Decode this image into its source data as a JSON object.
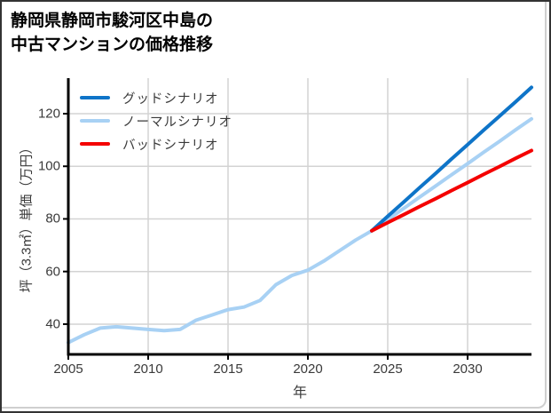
{
  "window": {
    "title_line1": "静岡県静岡市駿河区中島の",
    "title_line2": "中古マンションの価格推移"
  },
  "colors": {
    "good_scenario": "#0e74c8",
    "normal_scenario": "#a8d1f4",
    "bad_scenario": "#f40000",
    "grid": "#d3d3d3",
    "axis": "#000000",
    "tick_text": "#3a3a3a",
    "title_text": "#000000",
    "card_border": "#cfcfcf"
  },
  "chart_data": {
    "type": "line",
    "title": "静岡県静岡市駿河区中島の中古マンションの価格推移",
    "xlabel": "年",
    "ylabel": "坪（3.3㎡）単価（万円）",
    "x_ticks": [
      2005,
      2010,
      2015,
      2020,
      2025,
      2030
    ],
    "y_ticks": [
      40,
      60,
      80,
      100,
      120
    ],
    "xlim": [
      2005,
      2034
    ],
    "ylim": [
      28.5,
      133.5
    ],
    "grid": true,
    "legend_position": "top-left-inside",
    "series": [
      {
        "name": "グッドシナリオ",
        "color": "#0e74c8",
        "x": [
          2024,
          2025,
          2026,
          2027,
          2028,
          2029,
          2030,
          2031,
          2032,
          2033,
          2034
        ],
        "values": [
          75.5,
          81,
          86.4,
          91.9,
          97.3,
          102.8,
          108.2,
          113.7,
          119.1,
          124.5,
          130
        ]
      },
      {
        "name": "ノーマルシナリオ",
        "color": "#a8d1f4",
        "x": [
          2005,
          2006,
          2007,
          2008,
          2009,
          2010,
          2011,
          2012,
          2013,
          2014,
          2015,
          2016,
          2017,
          2018,
          2019,
          2020,
          2021,
          2022,
          2023,
          2024,
          2025,
          2026,
          2027,
          2028,
          2029,
          2030,
          2031,
          2032,
          2033,
          2034
        ],
        "values": [
          33,
          36,
          38.5,
          39,
          38.5,
          38,
          37.5,
          38,
          41.5,
          43.5,
          45.5,
          46.5,
          49,
          55,
          58.5,
          60.5,
          64,
          68,
          72,
          75.5,
          79.8,
          84,
          88.3,
          92.5,
          96.8,
          101,
          105.3,
          109.5,
          113.8,
          118
        ]
      },
      {
        "name": "バッドシナリオ",
        "color": "#f40000",
        "x": [
          2024,
          2025,
          2026,
          2027,
          2028,
          2029,
          2030,
          2031,
          2032,
          2033,
          2034
        ],
        "values": [
          75.5,
          78.6,
          81.6,
          84.7,
          87.7,
          90.8,
          93.8,
          96.9,
          99.9,
          103,
          106
        ]
      }
    ]
  }
}
